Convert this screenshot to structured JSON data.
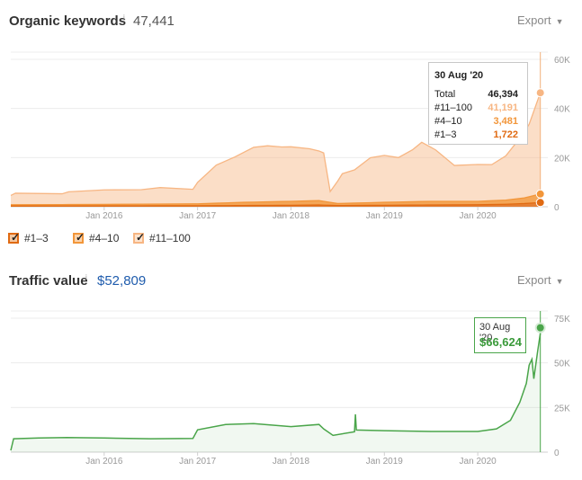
{
  "organic": {
    "title": "Organic keywords",
    "info_icon": "i",
    "total": "47,441",
    "export_label": "Export",
    "legend": [
      {
        "label": "#1–3",
        "color": "#e06a12"
      },
      {
        "label": "#4–10",
        "color": "#f2963a"
      },
      {
        "label": "#11–100",
        "color": "#f7b683"
      }
    ],
    "tooltip": {
      "date": "30 Aug '20",
      "rows": [
        {
          "label": "Total",
          "value": "46,394",
          "color": "#222222"
        },
        {
          "label": "#11–100",
          "value": "41,191",
          "color": "#f7b683"
        },
        {
          "label": "#4–10",
          "value": "3,481",
          "color": "#f2963a"
        },
        {
          "label": "#1–3",
          "value": "1,722",
          "color": "#e06a12"
        }
      ]
    }
  },
  "traffic": {
    "title": "Traffic value",
    "info_icon": "i",
    "total": "$52,809",
    "export_label": "Export",
    "tooltip": {
      "date": "30 Aug '20",
      "value": "$66,624"
    }
  },
  "chart_data": [
    {
      "type": "area",
      "title": "Organic keywords",
      "x_ticks": [
        "Jan 2016",
        "Jan 2017",
        "Jan 2018",
        "Jan 2019",
        "Jan 2020"
      ],
      "y_ticks": [
        "0",
        "20K",
        "40K",
        "60K"
      ],
      "ylim": [
        0,
        60000
      ],
      "xlim": [
        2015.0,
        2020.75
      ],
      "stacked": true,
      "series": [
        {
          "name": "#1–3",
          "color": "#e06a12",
          "x": [
            2015.0,
            2016.0,
            2017.0,
            2017.5,
            2018.0,
            2018.3,
            2018.5,
            2019.0,
            2019.5,
            2020.0,
            2020.3,
            2020.5,
            2020.67
          ],
          "y": [
            300,
            350,
            400,
            500,
            600,
            700,
            500,
            600,
            700,
            800,
            1000,
            1300,
            1722
          ]
        },
        {
          "name": "#4–10",
          "color": "#f2963a",
          "x": [
            2015.0,
            2016.0,
            2017.0,
            2017.5,
            2018.0,
            2018.3,
            2018.5,
            2019.0,
            2019.5,
            2020.0,
            2020.3,
            2020.5,
            2020.67
          ],
          "y": [
            500,
            600,
            800,
            1300,
            1600,
            1800,
            800,
            1200,
            1500,
            1400,
            1700,
            2300,
            3481
          ]
        },
        {
          "name": "#11–100",
          "color": "#f7b683",
          "x": [
            2015.0,
            2015.05,
            2015.55,
            2015.62,
            2016.0,
            2016.4,
            2016.6,
            2016.95,
            2017.0,
            2017.2,
            2017.4,
            2017.6,
            2017.75,
            2017.9,
            2018.0,
            2018.2,
            2018.35,
            2018.42,
            2018.55,
            2018.68,
            2018.85,
            2019.0,
            2019.15,
            2019.3,
            2019.4,
            2019.55,
            2019.75,
            2020.0,
            2020.15,
            2020.3,
            2020.45,
            2020.55,
            2020.67
          ],
          "y": [
            3800,
            4700,
            4400,
            5200,
            5900,
            5900,
            6700,
            5900,
            8700,
            15500,
            18600,
            22300,
            22800,
            22200,
            22200,
            21200,
            19700,
            4400,
            12100,
            13500,
            18300,
            19100,
            18100,
            21100,
            24100,
            20900,
            14600,
            15000,
            14700,
            18000,
            24500,
            29500,
            41191
          ]
        }
      ]
    },
    {
      "type": "line",
      "title": "Traffic value",
      "x_ticks": [
        "Jan 2016",
        "Jan 2017",
        "Jan 2018",
        "Jan 2019",
        "Jan 2020"
      ],
      "y_ticks": [
        "0",
        "25K",
        "50K",
        "75K"
      ],
      "ylim": [
        0,
        75000
      ],
      "xlim": [
        2015.0,
        2020.75
      ],
      "series": [
        {
          "name": "Traffic value",
          "color": "#4aa54a",
          "x": [
            2015.0,
            2015.03,
            2015.3,
            2015.6,
            2016.0,
            2016.5,
            2016.95,
            2017.0,
            2017.3,
            2017.6,
            2018.0,
            2018.3,
            2018.35,
            2018.45,
            2018.68,
            2018.69,
            2018.7,
            2019.0,
            2019.5,
            2020.0,
            2020.2,
            2020.35,
            2020.45,
            2020.52,
            2020.55,
            2020.58,
            2020.6,
            2020.64,
            2020.67
          ],
          "y": [
            1000,
            7500,
            7900,
            8200,
            7900,
            7500,
            7700,
            12500,
            15500,
            16000,
            14300,
            15500,
            13000,
            9400,
            11400,
            21200,
            12400,
            12000,
            11600,
            11600,
            13000,
            17800,
            27900,
            38500,
            48700,
            52000,
            41100,
            56100,
            66624
          ]
        }
      ]
    }
  ]
}
